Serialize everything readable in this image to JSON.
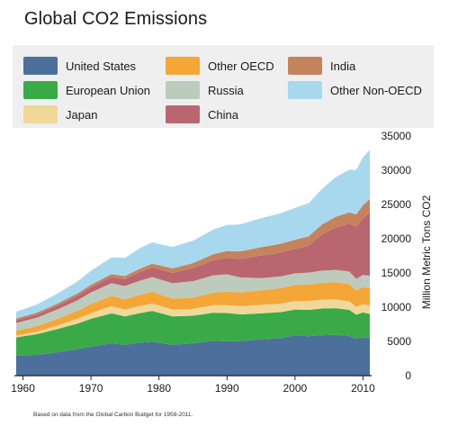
{
  "title": "Global CO2 Emissions",
  "footnote": "Based on data from the Global Carbon Budget for 1959-2011.",
  "chart_data": {
    "type": "area",
    "stacked": true,
    "title": "Global CO2 Emissions",
    "xlabel": "",
    "ylabel": "Million Metric Tons CO2",
    "xlim": [
      1959,
      2011
    ],
    "ylim": [
      0,
      35000
    ],
    "x_ticks": [
      1960,
      1970,
      1980,
      1990,
      2000,
      2010
    ],
    "y_ticks": [
      0,
      5000,
      10000,
      15000,
      20000,
      25000,
      30000,
      35000
    ],
    "y_axis_position": "right",
    "grid": false,
    "legend_position": "top",
    "x": [
      1959,
      1962,
      1965,
      1968,
      1970,
      1973,
      1975,
      1977,
      1979,
      1980,
      1982,
      1985,
      1988,
      1990,
      1992,
      1995,
      1998,
      2000,
      2002,
      2004,
      2006,
      2008,
      2009,
      2010,
      2011
    ],
    "series": [
      {
        "name": "United States",
        "color": "#4d6f9b",
        "values": [
          2900,
          3050,
          3400,
          3900,
          4250,
          4700,
          4500,
          4800,
          4950,
          4800,
          4500,
          4700,
          5100,
          5000,
          5050,
          5300,
          5500,
          5900,
          5750,
          5900,
          5950,
          5800,
          5400,
          5600,
          5450
        ]
      },
      {
        "name": "European Union",
        "color": "#3aaa48",
        "values": [
          2700,
          3000,
          3400,
          3700,
          4050,
          4400,
          4150,
          4300,
          4500,
          4400,
          4150,
          4050,
          4100,
          4150,
          3900,
          3800,
          3800,
          3750,
          3850,
          3900,
          3900,
          3800,
          3500,
          3650,
          3550
        ]
      },
      {
        "name": "Japan",
        "color": "#efd898",
        "values": [
          250,
          350,
          500,
          700,
          850,
          1050,
          1000,
          1050,
          1100,
          1050,
          1000,
          1000,
          1100,
          1150,
          1200,
          1250,
          1250,
          1250,
          1300,
          1300,
          1300,
          1250,
          1150,
          1200,
          1250
        ]
      },
      {
        "name": "Other OECD",
        "color": "#f4a637",
        "values": [
          700,
          800,
          950,
          1150,
          1300,
          1500,
          1500,
          1600,
          1700,
          1650,
          1600,
          1650,
          1800,
          1950,
          2000,
          2100,
          2250,
          2350,
          2400,
          2450,
          2500,
          2500,
          2400,
          2500,
          2500
        ]
      },
      {
        "name": "Russia",
        "color": "#bdcbbd",
        "values": [
          1150,
          1250,
          1400,
          1550,
          1700,
          1850,
          1950,
          2050,
          2150,
          2200,
          2250,
          2400,
          2550,
          2550,
          2200,
          1800,
          1700,
          1700,
          1750,
          1800,
          1800,
          1850,
          1700,
          1750,
          1850
        ]
      },
      {
        "name": "China",
        "color": "#b96670",
        "values": [
          400,
          450,
          550,
          650,
          750,
          900,
          1000,
          1250,
          1400,
          1450,
          1500,
          1900,
          2200,
          2400,
          2700,
          3300,
          3500,
          3550,
          3900,
          5300,
          6200,
          7000,
          7600,
          8300,
          9200
        ]
      },
      {
        "name": "India",
        "color": "#c4835d",
        "values": [
          250,
          280,
          300,
          350,
          380,
          420,
          450,
          500,
          550,
          580,
          650,
          750,
          900,
          1000,
          1100,
          1200,
          1300,
          1350,
          1400,
          1450,
          1550,
          1650,
          1800,
          1900,
          2000
        ]
      },
      {
        "name": "Other Non-OECD",
        "color": "#a8d8ee",
        "values": [
          1000,
          1200,
          1450,
          1750,
          2050,
          2450,
          2650,
          2950,
          3150,
          3100,
          3150,
          3250,
          3600,
          3800,
          3950,
          4250,
          4450,
          4650,
          4850,
          5200,
          5800,
          6250,
          6500,
          7000,
          7200
        ]
      }
    ]
  },
  "legend_layout": [
    [
      "United States",
      "Other OECD",
      "India"
    ],
    [
      "European Union",
      "Russia",
      "Other Non-OECD"
    ],
    [
      "Japan",
      "China"
    ]
  ]
}
